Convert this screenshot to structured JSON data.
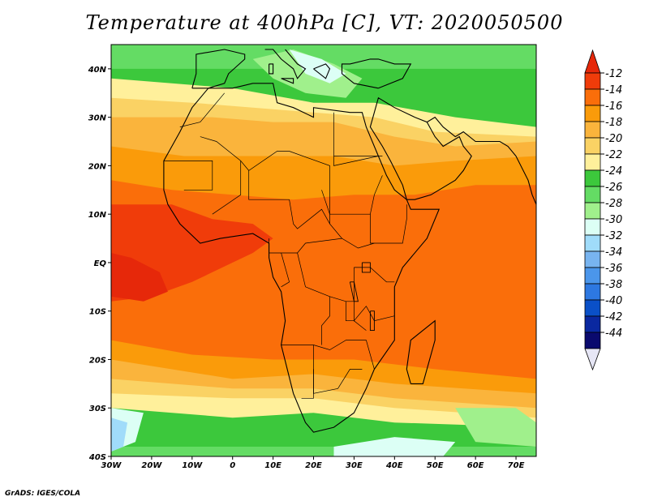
{
  "title": "Temperature at 400hPa [C], VT: 2020050500",
  "credit": "GrADS: IGES/COLA",
  "map": {
    "lon_range": [
      -30,
      75
    ],
    "lat_range": [
      -40,
      45
    ],
    "lon_ticks": [
      {
        "value": -30,
        "label": "30W"
      },
      {
        "value": -20,
        "label": "20W"
      },
      {
        "value": -10,
        "label": "10W"
      },
      {
        "value": 0,
        "label": "0"
      },
      {
        "value": 10,
        "label": "10E"
      },
      {
        "value": 20,
        "label": "20E"
      },
      {
        "value": 30,
        "label": "30E"
      },
      {
        "value": 40,
        "label": "40E"
      },
      {
        "value": 50,
        "label": "50E"
      },
      {
        "value": 60,
        "label": "60E"
      },
      {
        "value": 70,
        "label": "70E"
      }
    ],
    "lat_ticks": [
      {
        "value": 40,
        "label": "40N"
      },
      {
        "value": 30,
        "label": "30N"
      },
      {
        "value": 20,
        "label": "20N"
      },
      {
        "value": 10,
        "label": "10N"
      },
      {
        "value": 0,
        "label": "EQ"
      },
      {
        "value": -10,
        "label": "10S"
      },
      {
        "value": -20,
        "label": "20S"
      },
      {
        "value": -30,
        "label": "30S"
      },
      {
        "value": -40,
        "label": "40S"
      }
    ]
  },
  "colorbar": {
    "labels": [
      "-12",
      "-14",
      "-16",
      "-18",
      "-20",
      "-22",
      "-24",
      "-26",
      "-28",
      "-30",
      "-32",
      "-34",
      "-36",
      "-38",
      "-40",
      "-42",
      "-44"
    ],
    "colors": [
      "#f03c0a",
      "#fa6e0a",
      "#fa9b0a",
      "#fab43c",
      "#fad264",
      "#fff09b",
      "#3cc83c",
      "#64dc64",
      "#a0f08c",
      "#dcfff5",
      "#a0dcfa",
      "#78b4f0",
      "#4b96eb",
      "#2d78e1",
      "#0a50c8",
      "#0a28a0",
      "#0a0a6e"
    ],
    "top_color": "#e6280a",
    "bottom_color": "#e6e6f5"
  },
  "field_regions": [
    {
      "value": -27,
      "points": [
        [
          -30,
          45
        ],
        [
          75,
          45
        ],
        [
          75,
          -40
        ],
        [
          -30,
          -40
        ]
      ]
    },
    {
      "value": -25,
      "points": [
        [
          -30,
          40
        ],
        [
          75,
          40
        ],
        [
          75,
          -38
        ],
        [
          -30,
          -38
        ]
      ]
    },
    {
      "value": -23,
      "points": [
        [
          -30,
          38
        ],
        [
          0,
          36
        ],
        [
          20,
          33
        ],
        [
          35,
          33
        ],
        [
          55,
          30
        ],
        [
          75,
          28
        ],
        [
          75,
          -34
        ],
        [
          40,
          -33
        ],
        [
          20,
          -31
        ],
        [
          0,
          -32
        ],
        [
          -30,
          -30
        ]
      ]
    },
    {
      "value": -21,
      "points": [
        [
          -30,
          34
        ],
        [
          -10,
          33
        ],
        [
          5,
          32
        ],
        [
          20,
          31
        ],
        [
          35,
          30
        ],
        [
          50,
          27
        ],
        [
          75,
          26
        ],
        [
          75,
          -32
        ],
        [
          40,
          -30
        ],
        [
          20,
          -28
        ],
        [
          0,
          -28
        ],
        [
          -30,
          -27
        ]
      ]
    },
    {
      "value": -19,
      "points": [
        [
          -30,
          30
        ],
        [
          -5,
          30
        ],
        [
          10,
          29
        ],
        [
          25,
          29
        ],
        [
          40,
          26
        ],
        [
          55,
          24
        ],
        [
          75,
          25
        ],
        [
          75,
          -30
        ],
        [
          40,
          -28
        ],
        [
          20,
          -26
        ],
        [
          0,
          -26
        ],
        [
          -30,
          -24
        ]
      ]
    },
    {
      "value": -17,
      "points": [
        [
          -30,
          24
        ],
        [
          -12,
          22
        ],
        [
          5,
          22
        ],
        [
          25,
          22
        ],
        [
          40,
          20
        ],
        [
          55,
          21
        ],
        [
          75,
          22
        ],
        [
          75,
          -27
        ],
        [
          40,
          -25
        ],
        [
          20,
          -23
        ],
        [
          0,
          -24
        ],
        [
          -30,
          -20
        ]
      ]
    },
    {
      "value": -15,
      "points": [
        [
          -30,
          17
        ],
        [
          -15,
          15
        ],
        [
          0,
          14
        ],
        [
          15,
          13
        ],
        [
          30,
          14
        ],
        [
          45,
          14
        ],
        [
          60,
          16
        ],
        [
          75,
          16
        ],
        [
          75,
          -24
        ],
        [
          50,
          -22
        ],
        [
          30,
          -20
        ],
        [
          10,
          -20
        ],
        [
          -10,
          -19
        ],
        [
          -30,
          -16
        ]
      ]
    },
    {
      "value": -13,
      "points": [
        [
          -30,
          12
        ],
        [
          -15,
          12
        ],
        [
          -5,
          9
        ],
        [
          5,
          8
        ],
        [
          10,
          5
        ],
        [
          5,
          2
        ],
        [
          0,
          0
        ],
        [
          -10,
          -4
        ],
        [
          -20,
          -7
        ],
        [
          -30,
          -8
        ]
      ]
    },
    {
      "value": -12,
      "points": [
        [
          -30,
          2
        ],
        [
          -25,
          1
        ],
        [
          -18,
          -2
        ],
        [
          -16,
          -6
        ],
        [
          -22,
          -8
        ],
        [
          -30,
          -7
        ]
      ]
    },
    {
      "value": -29,
      "points": [
        [
          5,
          42
        ],
        [
          15,
          44
        ],
        [
          25,
          41
        ],
        [
          32,
          38
        ],
        [
          28,
          34
        ],
        [
          18,
          35
        ],
        [
          10,
          38
        ]
      ]
    },
    {
      "value": -31,
      "points": [
        [
          14,
          44
        ],
        [
          22,
          42
        ],
        [
          28,
          39
        ],
        [
          24,
          37
        ],
        [
          18,
          39
        ]
      ]
    },
    {
      "value": -31,
      "points": [
        [
          -30,
          -30
        ],
        [
          -22,
          -31
        ],
        [
          -24,
          -37
        ],
        [
          -30,
          -39
        ]
      ]
    },
    {
      "value": -33,
      "points": [
        [
          -30,
          -32
        ],
        [
          -26,
          -33
        ],
        [
          -27,
          -38
        ],
        [
          -30,
          -39
        ]
      ]
    },
    {
      "value": -31,
      "points": [
        [
          25,
          -38
        ],
        [
          40,
          -36
        ],
        [
          55,
          -37
        ],
        [
          52,
          -40
        ],
        [
          25,
          -40
        ]
      ]
    },
    {
      "value": -29,
      "points": [
        [
          55,
          -30
        ],
        [
          70,
          -30
        ],
        [
          75,
          -33
        ],
        [
          75,
          -38
        ],
        [
          60,
          -37
        ]
      ]
    }
  ],
  "coastlines": [
    [
      [
        -6,
        36
      ],
      [
        -10,
        32
      ],
      [
        -13,
        27
      ],
      [
        -17,
        21
      ],
      [
        -17,
        15
      ],
      [
        -16,
        12
      ],
      [
        -13,
        8
      ],
      [
        -8,
        4
      ],
      [
        -3,
        5
      ],
      [
        5,
        6
      ],
      [
        9,
        4
      ],
      [
        9,
        1
      ],
      [
        10,
        -3
      ],
      [
        12,
        -6
      ],
      [
        13,
        -12
      ],
      [
        12,
        -17
      ],
      [
        15,
        -27
      ],
      [
        18,
        -33
      ],
      [
        20,
        -35
      ],
      [
        25,
        -34
      ],
      [
        30,
        -31
      ],
      [
        33,
        -26
      ],
      [
        35,
        -22
      ],
      [
        40,
        -16
      ],
      [
        40,
        -11
      ],
      [
        40,
        -5
      ],
      [
        42,
        -1
      ],
      [
        48,
        5
      ],
      [
        51,
        11
      ],
      [
        44,
        11
      ],
      [
        43,
        13
      ],
      [
        40,
        15
      ],
      [
        38,
        18
      ],
      [
        36,
        22
      ],
      [
        33,
        28
      ],
      [
        32,
        31
      ],
      [
        29,
        31
      ],
      [
        20,
        32
      ],
      [
        20,
        30
      ],
      [
        15,
        32
      ],
      [
        11,
        33
      ],
      [
        10,
        37
      ],
      [
        5,
        37
      ],
      [
        0,
        36
      ],
      [
        -6,
        36
      ]
    ],
    [
      [
        35,
        31
      ],
      [
        34,
        28
      ],
      [
        37,
        24
      ],
      [
        39,
        21
      ],
      [
        42,
        16
      ],
      [
        43,
        13
      ],
      [
        45,
        13
      ],
      [
        49,
        14
      ],
      [
        53,
        16
      ],
      [
        55,
        17
      ],
      [
        57,
        19
      ],
      [
        59,
        22
      ],
      [
        57,
        24
      ],
      [
        56,
        26
      ],
      [
        52,
        24
      ],
      [
        50,
        26
      ],
      [
        48,
        29
      ],
      [
        45,
        30
      ],
      [
        40,
        32
      ],
      [
        36,
        34
      ],
      [
        35,
        31
      ]
    ],
    [
      [
        48,
        29
      ],
      [
        50,
        30
      ],
      [
        52,
        28
      ],
      [
        55,
        26
      ],
      [
        57,
        27
      ],
      [
        60,
        25
      ],
      [
        62,
        25
      ],
      [
        66,
        25
      ],
      [
        68,
        24
      ],
      [
        70,
        22
      ],
      [
        73,
        17
      ],
      [
        74,
        14
      ],
      [
        75,
        12
      ]
    ],
    [
      [
        44,
        -25
      ],
      [
        47,
        -25
      ],
      [
        50,
        -16
      ],
      [
        50,
        -12
      ],
      [
        47,
        -14
      ],
      [
        44,
        -16
      ],
      [
        43,
        -22
      ],
      [
        44,
        -25
      ]
    ],
    [
      [
        -10,
        36
      ],
      [
        -9,
        39
      ],
      [
        -9,
        43
      ],
      [
        -2,
        44
      ],
      [
        3,
        43
      ],
      [
        3,
        42
      ],
      [
        -1,
        39
      ],
      [
        -2,
        37
      ],
      [
        -6,
        36
      ],
      [
        -10,
        36
      ]
    ],
    [
      [
        36,
        36
      ],
      [
        30,
        37
      ],
      [
        27,
        39
      ],
      [
        27,
        41
      ],
      [
        29,
        41
      ],
      [
        34,
        42
      ],
      [
        36,
        42
      ],
      [
        40,
        41
      ],
      [
        44,
        41
      ],
      [
        42,
        38
      ],
      [
        36,
        36
      ]
    ],
    [
      [
        8,
        44
      ],
      [
        10,
        44
      ],
      [
        12,
        42
      ],
      [
        15,
        40
      ],
      [
        16,
        38
      ],
      [
        18,
        40
      ],
      [
        16,
        41
      ],
      [
        13,
        44
      ]
    ],
    [
      [
        20,
        40
      ],
      [
        23,
        38
      ],
      [
        24,
        40
      ],
      [
        23,
        41
      ],
      [
        20,
        40
      ]
    ],
    [
      [
        12,
        38
      ],
      [
        15,
        38
      ],
      [
        15,
        37
      ],
      [
        12,
        38
      ]
    ],
    [
      [
        9,
        41
      ],
      [
        10,
        41
      ],
      [
        10,
        39
      ],
      [
        9,
        39
      ],
      [
        9,
        41
      ]
    ]
  ],
  "borders": [
    [
      [
        -13,
        28
      ],
      [
        -8,
        29
      ],
      [
        -2,
        35
      ]
    ],
    [
      [
        -8,
        26
      ],
      [
        -4,
        25
      ],
      [
        2,
        21
      ],
      [
        4,
        19
      ],
      [
        11,
        23
      ],
      [
        14,
        23
      ]
    ],
    [
      [
        -17,
        21
      ],
      [
        -5,
        21
      ],
      [
        -5,
        15
      ],
      [
        -12,
        15
      ]
    ],
    [
      [
        2,
        21
      ],
      [
        2,
        14
      ],
      [
        -5,
        10
      ]
    ],
    [
      [
        4,
        19
      ],
      [
        4,
        13
      ],
      [
        14,
        13
      ]
    ],
    [
      [
        14,
        23
      ],
      [
        24,
        20
      ],
      [
        24,
        8
      ],
      [
        27,
        5
      ]
    ],
    [
      [
        25,
        31
      ],
      [
        25,
        20
      ],
      [
        36,
        22
      ]
    ],
    [
      [
        25,
        22
      ],
      [
        37,
        22
      ]
    ],
    [
      [
        22,
        15
      ],
      [
        24,
        10
      ],
      [
        34,
        10
      ],
      [
        35,
        14
      ],
      [
        37,
        18
      ]
    ],
    [
      [
        34,
        10
      ],
      [
        34,
        4
      ],
      [
        35,
        4
      ],
      [
        40,
        4
      ],
      [
        42,
        4
      ],
      [
        43,
        9
      ],
      [
        43,
        12
      ]
    ],
    [
      [
        14,
        13
      ],
      [
        15,
        8
      ],
      [
        16,
        7
      ],
      [
        19,
        9
      ],
      [
        22,
        11
      ],
      [
        24,
        8
      ]
    ],
    [
      [
        9,
        5
      ],
      [
        9,
        2
      ],
      [
        12,
        2
      ],
      [
        16,
        2
      ],
      [
        18,
        4
      ],
      [
        27,
        5
      ],
      [
        31,
        3
      ],
      [
        35,
        4
      ]
    ],
    [
      [
        12,
        2
      ],
      [
        14,
        -4
      ],
      [
        12,
        -5
      ]
    ],
    [
      [
        16,
        2
      ],
      [
        18,
        -5
      ],
      [
        24,
        -7
      ],
      [
        28,
        -8
      ],
      [
        30,
        -8
      ]
    ],
    [
      [
        30,
        -1
      ],
      [
        34,
        -1
      ],
      [
        38,
        -4
      ],
      [
        40,
        -4
      ]
    ],
    [
      [
        30,
        -1
      ],
      [
        30,
        -12
      ],
      [
        33,
        -9
      ],
      [
        35,
        -12
      ],
      [
        40,
        -11
      ]
    ],
    [
      [
        12,
        -17
      ],
      [
        20,
        -17
      ],
      [
        24,
        -18
      ],
      [
        28,
        -16
      ],
      [
        33,
        -16
      ],
      [
        35,
        -22
      ]
    ],
    [
      [
        20,
        -17
      ],
      [
        20,
        -27
      ],
      [
        26,
        -26
      ],
      [
        29,
        -22
      ],
      [
        32,
        -22
      ]
    ],
    [
      [
        20,
        -22
      ],
      [
        20,
        -28
      ],
      [
        17,
        -28
      ]
    ],
    [
      [
        24,
        -7
      ],
      [
        24,
        -11
      ],
      [
        22,
        -13
      ],
      [
        22,
        -17
      ]
    ],
    [
      [
        28,
        -8
      ],
      [
        28,
        -12
      ],
      [
        30,
        -12
      ],
      [
        33,
        -14
      ]
    ]
  ],
  "lakes": [
    [
      [
        32,
        0
      ],
      [
        34,
        0
      ],
      [
        34,
        -2
      ],
      [
        32,
        -2
      ],
      [
        32,
        0
      ]
    ],
    [
      [
        29,
        -4
      ],
      [
        30,
        -4
      ],
      [
        31,
        -8
      ],
      [
        30,
        -8
      ],
      [
        29,
        -4
      ]
    ],
    [
      [
        34,
        -10
      ],
      [
        35,
        -10
      ],
      [
        35,
        -14
      ],
      [
        34,
        -14
      ],
      [
        34,
        -10
      ]
    ]
  ]
}
